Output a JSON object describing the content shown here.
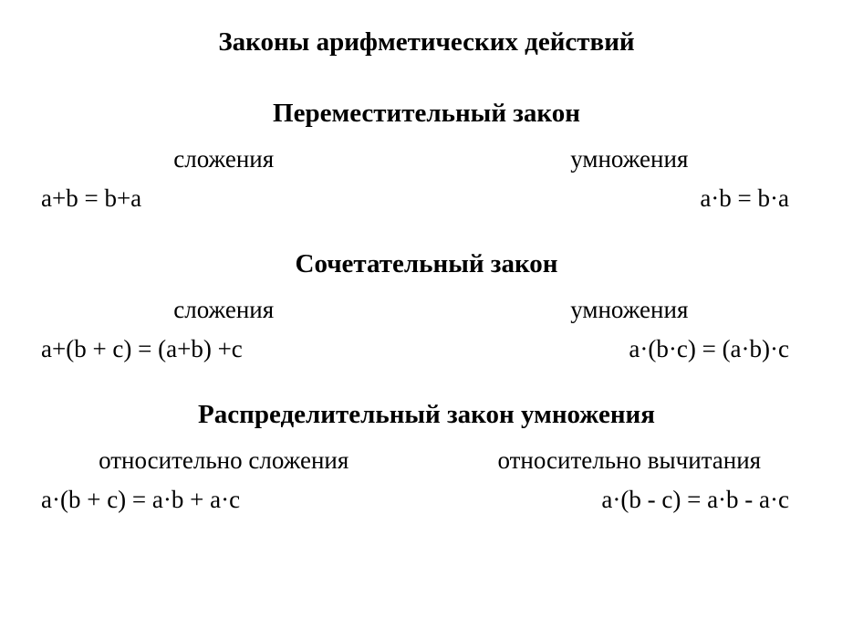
{
  "mainTitle": "Законы арифметических действий",
  "law1": {
    "title": "Переместительный закон",
    "leftLabel": "сложения",
    "rightLabel": "умножения",
    "leftFormula": "a+b = b+a",
    "rightFormula": "a·b = b·a"
  },
  "law2": {
    "title": "Сочетательный закон",
    "leftLabel": "сложения",
    "rightLabel": "умножения",
    "leftFormula": "a+(b + c) = (a+b) +c",
    "rightFormula": "a·(b·c) = (a·b)·c"
  },
  "law3": {
    "title": "Распределительный закон умножения",
    "leftLabel": "относительно сложения",
    "rightLabel": "относительно вычитания",
    "leftFormula": "a·(b + c)  = a·b + a·c",
    "rightFormula": "a·(b - c) = a·b - a·c"
  },
  "styling": {
    "backgroundColor": "#ffffff",
    "textColor": "#000000",
    "fontFamily": "Times New Roman",
    "titleFontSize": 29,
    "titleFontWeight": "bold",
    "labelFontSize": 27,
    "formulaFontSize": 27
  }
}
